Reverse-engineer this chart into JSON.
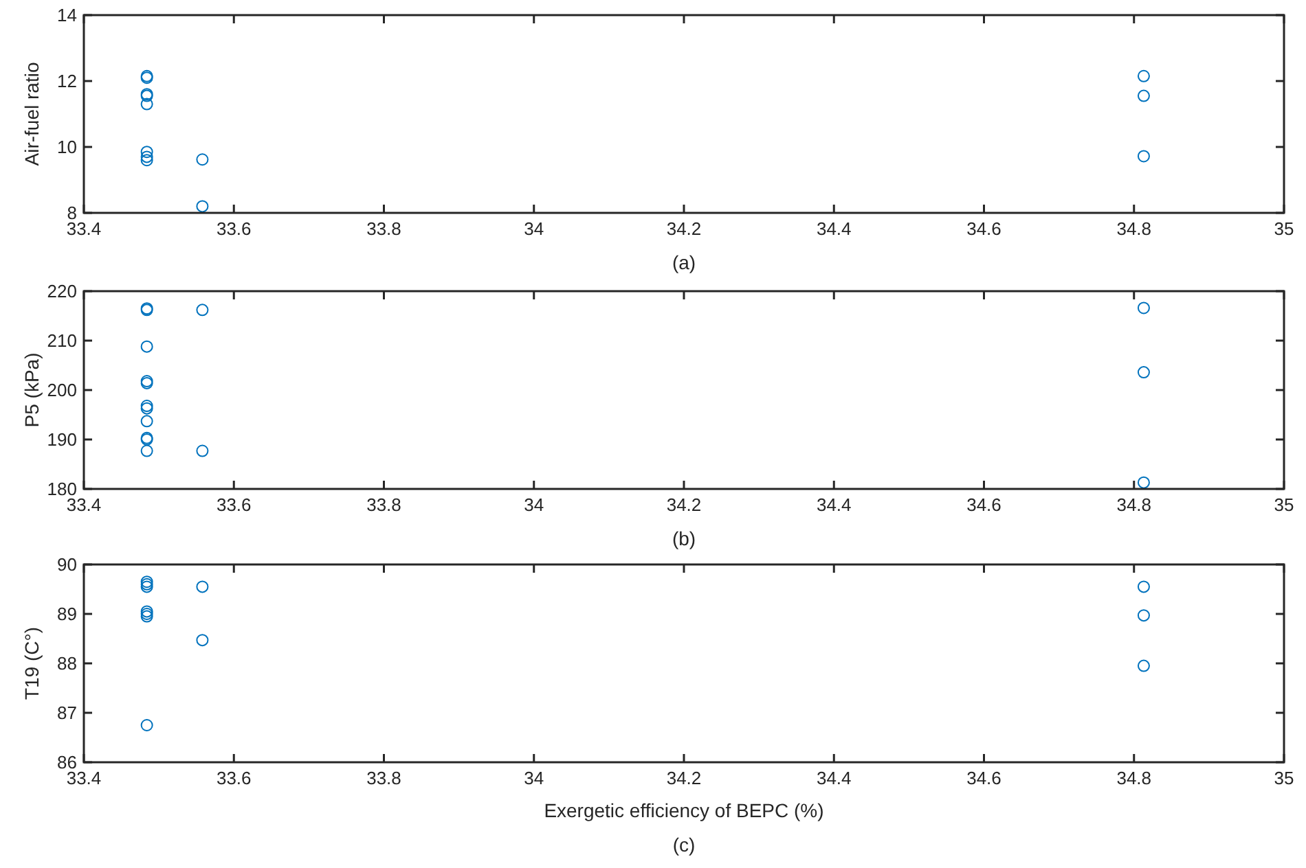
{
  "chart_data": [
    {
      "type": "scatter",
      "ylabel": "Air-fuel ratio",
      "annotations": [
        "(a)"
      ],
      "marker": "circle",
      "xlim": [
        33.4,
        35
      ],
      "xticks": [
        33.4,
        33.6,
        33.8,
        34,
        34.2,
        34.4,
        34.6,
        34.8,
        35
      ],
      "ylim": [
        8,
        14
      ],
      "yticks": [
        8,
        10,
        12,
        14
      ],
      "series": [
        {
          "color": "#0072bd",
          "x": [
            33.484,
            33.484,
            33.484,
            33.484,
            33.484,
            33.484,
            33.484,
            33.484,
            33.558,
            33.558,
            34.813,
            34.813,
            34.813
          ],
          "values": [
            12.15,
            12.1,
            11.6,
            11.55,
            11.3,
            9.85,
            9.7,
            9.6,
            9.62,
            8.2,
            12.15,
            11.55,
            9.72
          ]
        }
      ]
    },
    {
      "type": "scatter",
      "ylabel": "P5 (kPa)",
      "annotations": [
        "(b)"
      ],
      "marker": "circle",
      "xlim": [
        33.4,
        35
      ],
      "xticks": [
        33.4,
        33.6,
        33.8,
        34,
        34.2,
        34.4,
        34.6,
        34.8,
        35
      ],
      "ylim": [
        180,
        220
      ],
      "yticks": [
        180,
        190,
        200,
        210,
        220
      ],
      "series": [
        {
          "color": "#0072bd",
          "x": [
            33.484,
            33.484,
            33.484,
            33.484,
            33.484,
            33.484,
            33.484,
            33.484,
            33.484,
            33.484,
            33.484,
            33.558,
            33.558,
            34.813,
            34.813,
            34.813
          ],
          "values": [
            216.5,
            216.2,
            208.8,
            201.8,
            201.4,
            196.8,
            196.3,
            193.7,
            190.3,
            190,
            187.7,
            216.2,
            187.7,
            216.6,
            203.6,
            181.3
          ]
        }
      ]
    },
    {
      "type": "scatter",
      "xlabel": "Exergetic efficiency of BEPC (%)",
      "ylabel": "T19 (C°)",
      "annotations": [
        "(c)"
      ],
      "marker": "circle",
      "xlim": [
        33.4,
        35
      ],
      "xticks": [
        33.4,
        33.6,
        33.8,
        34,
        34.2,
        34.4,
        34.6,
        34.8,
        35
      ],
      "ylim": [
        86,
        90
      ],
      "yticks": [
        86,
        87,
        88,
        89,
        90
      ],
      "series": [
        {
          "color": "#0072bd",
          "x": [
            33.484,
            33.484,
            33.484,
            33.484,
            33.484,
            33.484,
            33.484,
            33.558,
            33.558,
            34.813,
            34.813,
            34.813
          ],
          "values": [
            89.65,
            89.6,
            89.55,
            89.05,
            89,
            88.95,
            86.75,
            89.55,
            88.47,
            89.55,
            88.97,
            87.95
          ]
        }
      ]
    }
  ]
}
